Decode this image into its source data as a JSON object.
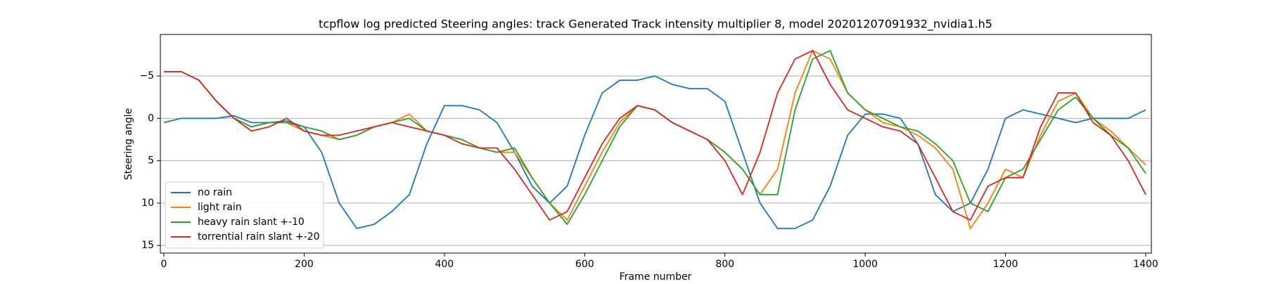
{
  "chart_data": {
    "type": "line",
    "title": "tcpflow log predicted Steering angles: track Generated Track intensity multiplier 8, model 20201207091932_nvidia1.h5",
    "x_label": "Frame number",
    "y_label": "Steering angle",
    "x": [
      0,
      25,
      50,
      75,
      100,
      125,
      150,
      175,
      200,
      225,
      250,
      275,
      300,
      325,
      350,
      375,
      400,
      425,
      450,
      475,
      500,
      525,
      550,
      575,
      600,
      625,
      650,
      675,
      700,
      725,
      750,
      775,
      800,
      825,
      850,
      875,
      900,
      925,
      950,
      975,
      1000,
      1025,
      1050,
      1075,
      1100,
      1125,
      1150,
      1175,
      1200,
      1225,
      1250,
      1275,
      1300,
      1325,
      1350,
      1375,
      1400
    ],
    "series": [
      {
        "name": "no rain",
        "color": "#1f77b4",
        "values": [
          0.5,
          0,
          0,
          0,
          -0.3,
          0.5,
          0.5,
          0.3,
          1,
          4,
          10,
          13,
          12.5,
          11,
          9,
          3,
          -1.5,
          -1.5,
          -1,
          0.5,
          4,
          8,
          10,
          8,
          2,
          -3,
          -4.5,
          -4.5,
          -5,
          -4,
          -3.5,
          -3.5,
          -2,
          4,
          10,
          13,
          13,
          12,
          8,
          2,
          -0.5,
          -0.5,
          0,
          3,
          9,
          11,
          10,
          6,
          0,
          -1,
          -0.5,
          0,
          0.5,
          0,
          0,
          0,
          -1
        ]
      },
      {
        "name": "light rain",
        "color": "#ff7f0e",
        "values": [
          -5.5,
          -5.5,
          -4.5,
          -2,
          0,
          1,
          0.5,
          0.5,
          1.5,
          2,
          2.5,
          2,
          1,
          0.5,
          -0.5,
          1.5,
          2,
          2.5,
          3.5,
          4,
          4,
          7,
          10,
          12,
          8,
          4,
          0.5,
          -1.5,
          -1,
          0.5,
          1.5,
          2.5,
          4,
          6,
          9,
          6,
          -3,
          -8,
          -7,
          -3,
          -1,
          0.5,
          1,
          2,
          3.5,
          6,
          13,
          10,
          6,
          7,
          2,
          -2,
          -3,
          0,
          1.5,
          3.5,
          5.5
        ]
      },
      {
        "name": "heavy rain slant +-10",
        "color": "#2ca02c",
        "values": [
          -5.5,
          -5.5,
          -4.5,
          -2,
          0,
          1,
          0.5,
          0.5,
          1,
          1.5,
          2.5,
          2,
          1,
          0.5,
          0,
          1.5,
          2,
          2.5,
          3.5,
          4,
          3.5,
          7,
          10,
          12.5,
          9,
          5,
          1,
          -1.5,
          -1,
          0.5,
          1.5,
          2.5,
          4,
          6,
          9,
          9,
          -1,
          -7,
          -8,
          -3,
          -1,
          0,
          1,
          1.5,
          3,
          5,
          10,
          11,
          7,
          6,
          2.5,
          -1,
          -2.5,
          0,
          2,
          3.5,
          6.5
        ]
      },
      {
        "name": "torrential rain slant +-20",
        "color": "#d62728",
        "values": [
          -5.5,
          -5.5,
          -4.5,
          -2,
          0,
          1.5,
          1,
          0,
          1.5,
          2,
          2,
          1.5,
          1,
          0.5,
          1,
          1.5,
          2,
          3,
          3.5,
          3.5,
          6,
          9,
          12,
          11,
          7,
          3,
          0,
          -1.5,
          -1,
          0.5,
          1.5,
          2.5,
          5,
          9,
          4,
          -3,
          -7,
          -8,
          -4,
          -1,
          0,
          1,
          1.5,
          3,
          7,
          11,
          12,
          8,
          7,
          7,
          1,
          -3,
          -3,
          0.5,
          2,
          5,
          9
        ]
      }
    ],
    "xlim": [
      -5,
      1408
    ],
    "ylim": [
      -9.9,
      15.9
    ],
    "y_inverted": true,
    "xticks": [
      0,
      200,
      400,
      600,
      800,
      1000,
      1200,
      1400
    ],
    "yticks": [
      {
        "value": -5,
        "label": "−5"
      },
      0,
      5,
      10,
      15
    ],
    "grid": "y",
    "legend": "lower left"
  }
}
